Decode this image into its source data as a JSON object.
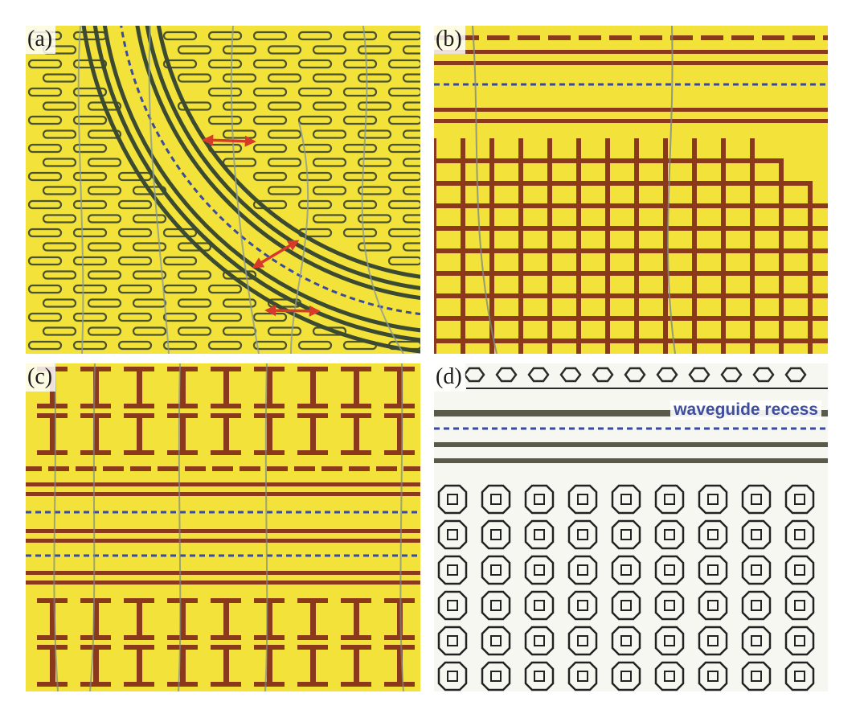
{
  "panels": [
    {
      "id": "a",
      "label": "(a)"
    },
    {
      "id": "b",
      "label": "(b)"
    },
    {
      "id": "c",
      "label": "(c)"
    },
    {
      "id": "d",
      "label": "(d)",
      "annotation": "waveguide recess"
    }
  ],
  "colors": {
    "substrate": "#f2e23a",
    "copper": "#8a3a1a",
    "dark_line": "#3b4a30",
    "guide_dashed": "#3a4aa0",
    "arrow": "#d83a2a",
    "panel_d_background": "#f7f7f2"
  }
}
